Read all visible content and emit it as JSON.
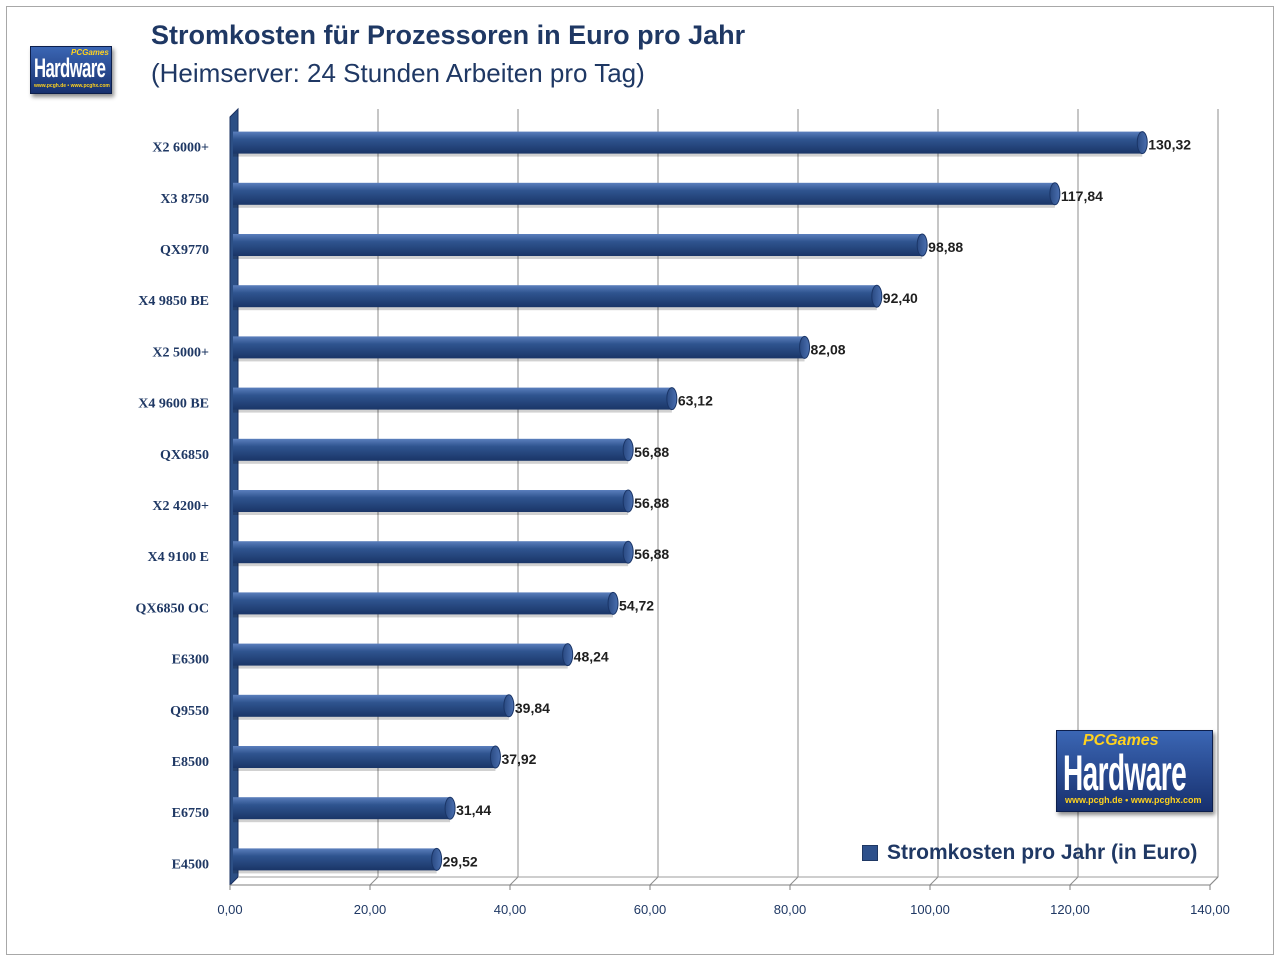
{
  "page": {
    "title": "Stromkosten für Prozessoren in Euro pro Jahr",
    "subtitle": "(Heimserver: 24 Stunden Arbeiten pro Tag)"
  },
  "logo_small": {
    "brand_top": "PCGames",
    "brand": "Hardware",
    "url": "www.pcgh.de • www.pcghx.com"
  },
  "logo_big": {
    "brand_top": "PCGames",
    "brand": "Hardware",
    "url": "www.pcgh.de • www.pcghx.com"
  },
  "colors": {
    "bar": "#2e518c",
    "bar_dark": "#1f3864",
    "text": "#1f3864"
  },
  "chart_data": {
    "type": "bar",
    "orientation": "horizontal",
    "categories": [
      "X2 6000+",
      "X3 8750",
      "QX9770",
      "X4 9850 BE",
      "X2 5000+",
      "X4 9600 BE",
      "QX6850",
      "X2 4200+",
      "X4 9100 E",
      "QX6850 OC",
      "E6300",
      "Q9550",
      "E8500",
      "E6750",
      "E4500"
    ],
    "series": [
      {
        "name": "Stromkosten pro Jahr (in Euro)",
        "values": [
          130.32,
          117.84,
          98.88,
          92.4,
          82.08,
          63.12,
          56.88,
          56.88,
          56.88,
          54.72,
          48.24,
          39.84,
          37.92,
          31.44,
          29.52
        ],
        "labels": [
          "130,32",
          "117,84",
          "98,88",
          "92,40",
          "82,08",
          "63,12",
          "56,88",
          "56,88",
          "56,88",
          "54,72",
          "48,24",
          "39,84",
          "37,92",
          "31,44",
          "29,52"
        ]
      }
    ],
    "xlim": [
      0,
      140
    ],
    "xticks": [
      0,
      20,
      40,
      60,
      80,
      100,
      120,
      140
    ],
    "xtick_labels": [
      "0,00",
      "20,00",
      "40,00",
      "60,00",
      "80,00",
      "100,00",
      "120,00",
      "140,00"
    ],
    "grid": true,
    "legend_position": "bottom-right"
  }
}
